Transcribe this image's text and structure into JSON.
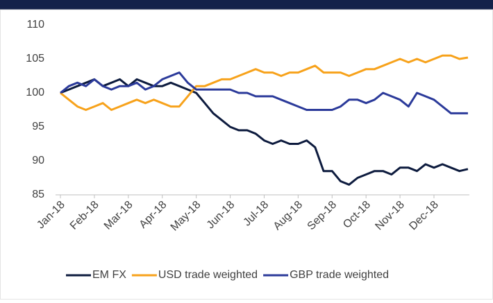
{
  "chart_data": {
    "type": "line",
    "categories": [
      "Jan-18",
      null,
      null,
      null,
      "Feb-18",
      null,
      null,
      null,
      "Mar-18",
      null,
      null,
      null,
      "Apr-18",
      null,
      null,
      null,
      "May-18",
      null,
      null,
      null,
      "Jun-18",
      null,
      null,
      null,
      "Jul-18",
      null,
      null,
      null,
      "Aug-18",
      null,
      null,
      null,
      "Sep-18",
      null,
      null,
      null,
      "Oct-18",
      null,
      null,
      null,
      "Nov-18",
      null,
      null,
      null,
      "Dec-18",
      null,
      null,
      null,
      null
    ],
    "series": [
      {
        "name": "EM FX",
        "color": "#0d1b3e",
        "values": [
          100,
          100.5,
          101,
          101.5,
          102,
          101,
          101.5,
          102,
          101,
          102,
          101.5,
          101,
          101,
          101.5,
          101,
          100.5,
          100,
          98.5,
          97,
          96,
          95,
          94.5,
          94.5,
          94,
          93,
          92.5,
          93,
          92.5,
          92.5,
          93,
          92,
          88.5,
          88.5,
          87,
          86.5,
          87.5,
          88,
          88.5,
          88.5,
          88,
          89,
          89,
          88.5,
          89.5,
          89,
          89.5,
          89,
          88.5,
          88.8
        ]
      },
      {
        "name": "USD trade weighted",
        "color": "#f7a21b",
        "values": [
          100,
          99,
          98,
          97.5,
          98,
          98.5,
          97.5,
          98,
          98.5,
          99,
          98.5,
          99,
          98.5,
          98,
          98,
          99.5,
          101,
          101,
          101.5,
          102,
          102,
          102.5,
          103,
          103.5,
          103,
          103,
          102.5,
          103,
          103,
          103.5,
          104,
          103,
          103,
          103,
          102.5,
          103,
          103.5,
          103.5,
          104,
          104.5,
          105,
          104.5,
          105,
          104.5,
          105,
          105.5,
          105.5,
          105,
          105.2
        ]
      },
      {
        "name": "GBP trade weighted",
        "color": "#2b3a9a",
        "values": [
          100,
          101,
          101.5,
          101,
          102,
          101,
          100.5,
          101,
          101,
          101.5,
          100.5,
          101,
          102,
          102.5,
          103,
          101.5,
          100.5,
          100.5,
          100.5,
          100.5,
          100.5,
          100,
          100,
          99.5,
          99.5,
          99.5,
          99,
          98.5,
          98,
          97.5,
          97.5,
          97.5,
          97.5,
          98,
          99,
          99,
          98.5,
          99,
          100,
          99.5,
          99,
          98,
          100,
          99.5,
          99,
          98,
          97,
          97,
          97
        ]
      }
    ],
    "ylim": [
      85,
      110
    ],
    "yticks": [
      85,
      90,
      95,
      100,
      105,
      110
    ]
  }
}
